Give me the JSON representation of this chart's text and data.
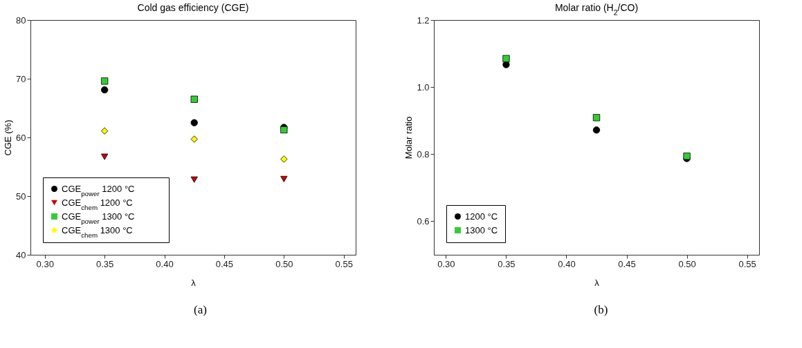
{
  "chart_data": [
    {
      "type": "scatter",
      "title": "Cold gas efficiency (CGE)",
      "xlabel": "λ",
      "ylabel": "CGE (%)",
      "x": [
        0.35,
        0.425,
        0.5
      ],
      "series": [
        {
          "name": "CGE$_{power}$ 1200 °C",
          "color": "#000000",
          "marker": "circle",
          "values": [
            68.1,
            62.5,
            61.7
          ]
        },
        {
          "name": "CGE$_{chem}$ 1200 °C",
          "color": "#cc0000",
          "marker": "triangle",
          "values": [
            56.7,
            52.8,
            52.9
          ]
        },
        {
          "name": "CGE$_{power}$ 1300 °C",
          "color": "#33cc33",
          "marker": "square",
          "values": [
            69.6,
            66.5,
            61.3
          ]
        },
        {
          "name": "CGE$_{chem}$ 1300 °C",
          "color": "#ffff00",
          "marker": "diamond",
          "values": [
            61.1,
            59.7,
            56.3
          ]
        }
      ],
      "xlim": [
        0.288,
        0.56
      ],
      "xticks": [
        {
          "value": 0.3,
          "label": "0.30"
        },
        0.35,
        {
          "value": 0.4,
          "label": "0.40"
        },
        0.45,
        {
          "value": 0.5,
          "label": "0.50"
        },
        0.55
      ],
      "ylim": [
        40,
        80
      ],
      "yticks": [
        40,
        50,
        60,
        70,
        80
      ],
      "legend": "bottom left",
      "annotations": [
        "(a)"
      ]
    },
    {
      "type": "scatter",
      "title": "Molar ratio (H$_{2}$/CO)",
      "xlabel": "λ",
      "ylabel": "Molar ratio",
      "x": [
        0.35,
        0.425,
        0.5
      ],
      "series": [
        {
          "name": "1200 °C",
          "color": "#000000",
          "marker": "circle",
          "values": [
            1.067,
            0.872,
            0.787
          ]
        },
        {
          "name": "1300 °C",
          "color": "#33cc33",
          "marker": "square",
          "values": [
            1.085,
            0.909,
            0.794
          ]
        }
      ],
      "xlim": [
        0.29,
        0.56
      ],
      "xticks": [
        {
          "value": 0.3,
          "label": "0.30"
        },
        0.35,
        {
          "value": 0.4,
          "label": "0.40"
        },
        0.45,
        {
          "value": 0.5,
          "label": "0.50"
        },
        0.55
      ],
      "ylim": [
        0.5,
        1.2
      ],
      "yticks": [
        0.6,
        0.8,
        {
          "value": 1,
          "label": "1.0"
        },
        1.2
      ],
      "legend": "bottom left",
      "annotations": [
        "(b)"
      ]
    }
  ]
}
